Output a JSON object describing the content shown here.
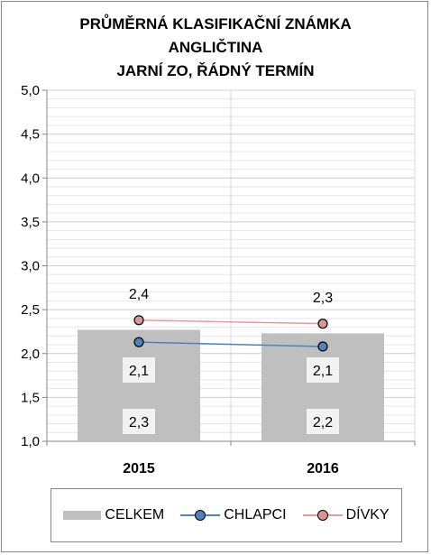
{
  "chart_data": {
    "type": "bar",
    "title_lines": [
      "PRŮMĚRNÁ KLASIFIKAČNÍ ZNÁMKA",
      "ANGLIČTINA",
      "JARNÍ ZO, ŘÁDNÝ TERMÍN"
    ],
    "categories": [
      "2015",
      "2016"
    ],
    "ylim": [
      1.0,
      5.0
    ],
    "yticks": [
      "1,0",
      "1,5",
      "2,0",
      "2,5",
      "3,0",
      "3,5",
      "4,0",
      "4,5",
      "5,0"
    ],
    "series": [
      {
        "name": "CELKEM",
        "kind": "bar",
        "values": [
          2.27,
          2.23
        ],
        "labels": [
          "2,3",
          "2,2"
        ],
        "color": "#bfbfbf"
      },
      {
        "name": "CHLAPCI",
        "kind": "line",
        "values": [
          2.13,
          2.08
        ],
        "labels": [
          "2,1",
          "2,1"
        ],
        "color": "#4f81bd",
        "marker": "#4f81bd"
      },
      {
        "name": "DÍVKY",
        "kind": "line",
        "values": [
          2.38,
          2.34
        ],
        "labels": [
          "2,4",
          "2,3"
        ],
        "color": "#e6999b",
        "marker": "#d99694"
      }
    ],
    "grid": true,
    "legend_position": "bottom"
  }
}
